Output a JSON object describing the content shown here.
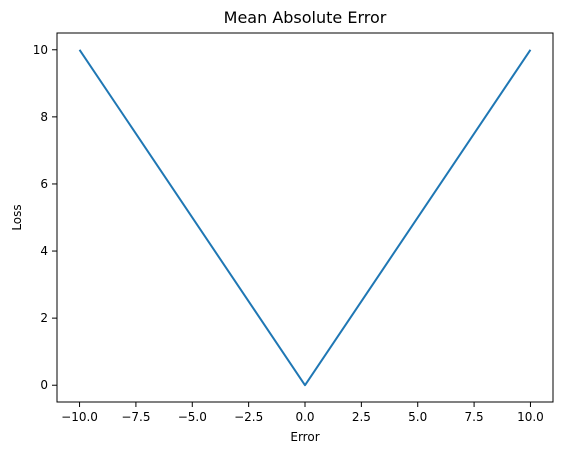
{
  "chart_data": {
    "type": "line",
    "title": "Mean Absolute Error",
    "xlabel": "Error",
    "ylabel": "Loss",
    "xlim": [
      -11,
      11
    ],
    "ylim": [
      -0.5,
      10.5
    ],
    "x_ticks": [
      -10.0,
      -7.5,
      -5.0,
      -2.5,
      0.0,
      2.5,
      5.0,
      7.5,
      10.0
    ],
    "x_tick_labels": [
      "−10.0",
      "−7.5",
      "−5.0",
      "−2.5",
      "0.0",
      "2.5",
      "5.0",
      "7.5",
      "10.0"
    ],
    "y_ticks": [
      0,
      2,
      4,
      6,
      8,
      10
    ],
    "y_tick_labels": [
      "0",
      "2",
      "4",
      "6",
      "8",
      "10"
    ],
    "grid": false,
    "series": [
      {
        "color": "#1f77b4",
        "x": [
          -10,
          0,
          10
        ],
        "y": [
          10,
          0,
          10
        ]
      }
    ]
  }
}
